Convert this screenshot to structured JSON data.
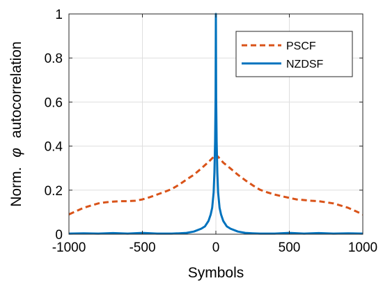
{
  "chart_data": {
    "type": "line",
    "title": "",
    "xlabel": "Symbols",
    "ylabel_prefix": "Norm.",
    "ylabel_symbol": "φ",
    "ylabel_suffix": "autocorrelation",
    "xlim": [
      -1000,
      1000
    ],
    "ylim": [
      0,
      1
    ],
    "xticks": [
      -1000,
      -500,
      0,
      500,
      1000
    ],
    "yticks": [
      0,
      0.2,
      0.4,
      0.6,
      0.8,
      1
    ],
    "grid": true,
    "legend_position": "top-right",
    "series": [
      {
        "name": "PSCF",
        "color": "#d95319",
        "style": "dashed",
        "x": [
          -1000,
          -950,
          -900,
          -850,
          -800,
          -750,
          -700,
          -650,
          -600,
          -550,
          -500,
          -450,
          -400,
          -350,
          -300,
          -250,
          -200,
          -150,
          -100,
          -50,
          -20,
          0,
          20,
          50,
          100,
          150,
          200,
          250,
          300,
          350,
          400,
          450,
          500,
          550,
          600,
          650,
          700,
          750,
          800,
          850,
          900,
          950,
          1000
        ],
        "y": [
          0.09,
          0.105,
          0.12,
          0.13,
          0.14,
          0.145,
          0.148,
          0.15,
          0.15,
          0.152,
          0.158,
          0.168,
          0.18,
          0.192,
          0.205,
          0.225,
          0.248,
          0.27,
          0.298,
          0.328,
          0.348,
          0.362,
          0.348,
          0.325,
          0.298,
          0.27,
          0.245,
          0.222,
          0.202,
          0.19,
          0.18,
          0.172,
          0.165,
          0.158,
          0.155,
          0.152,
          0.15,
          0.145,
          0.14,
          0.13,
          0.12,
          0.105,
          0.09
        ]
      },
      {
        "name": "NZDSF",
        "color": "#0072bd",
        "style": "solid",
        "x": [
          -1000,
          -900,
          -800,
          -700,
          -600,
          -500,
          -400,
          -300,
          -250,
          -200,
          -150,
          -100,
          -75,
          -50,
          -35,
          -25,
          -15,
          -10,
          -5,
          -2,
          0,
          2,
          5,
          10,
          15,
          25,
          35,
          50,
          75,
          100,
          150,
          200,
          250,
          300,
          400,
          500,
          600,
          700,
          800,
          900,
          1000
        ],
        "y": [
          0.003,
          0.004,
          0.003,
          0.005,
          0.003,
          0.006,
          0.003,
          0.003,
          0.004,
          0.006,
          0.012,
          0.025,
          0.035,
          0.06,
          0.09,
          0.12,
          0.19,
          0.28,
          0.42,
          0.62,
          1.0,
          0.62,
          0.42,
          0.28,
          0.19,
          0.12,
          0.09,
          0.06,
          0.035,
          0.025,
          0.012,
          0.006,
          0.004,
          0.003,
          0.003,
          0.006,
          0.003,
          0.005,
          0.003,
          0.004,
          0.003
        ]
      }
    ]
  }
}
